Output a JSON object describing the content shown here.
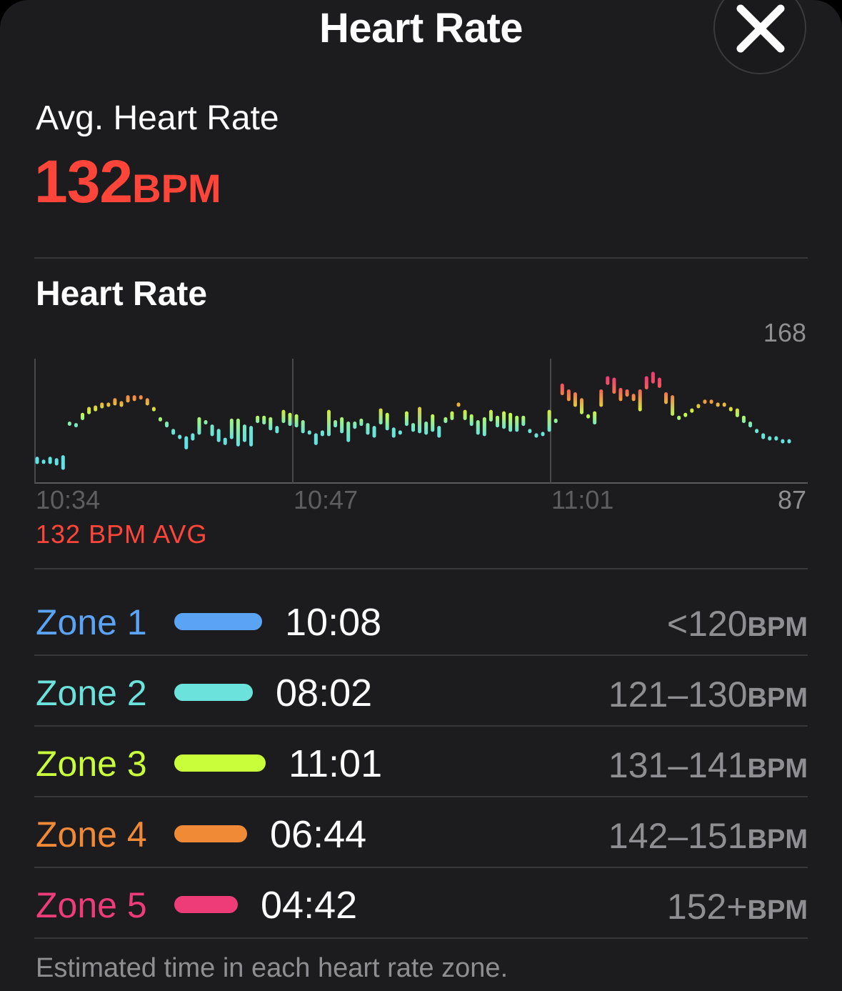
{
  "header": {
    "title": "Heart Rate"
  },
  "summary": {
    "label": "Avg. Heart Rate",
    "value": "132",
    "unit": "BPM"
  },
  "chart_section": {
    "title": "Heart Rate",
    "avg_caption": "132 BPM AVG"
  },
  "chart_data": {
    "type": "bar",
    "title": "Heart Rate",
    "x_tick_labels": [
      "10:34",
      "10:47",
      "11:01"
    ],
    "y_max_label": "168",
    "y_min_label": "87",
    "ylim": [
      87,
      168
    ],
    "unit": "BPM",
    "series": [
      {
        "name": "Heart rate range per interval",
        "values": [
          [
            98,
            103
          ],
          [
            99,
            101
          ],
          [
            98,
            103
          ],
          [
            97,
            102
          ],
          [
            94,
            104
          ],
          [
            125,
            127
          ],
          [
            124,
            126
          ],
          [
            128,
            133
          ],
          [
            132,
            137
          ],
          [
            134,
            138
          ],
          [
            136,
            140
          ],
          [
            137,
            140
          ],
          [
            138,
            143
          ],
          [
            137,
            141
          ],
          [
            140,
            145
          ],
          [
            141,
            145
          ],
          [
            142,
            145
          ],
          [
            138,
            143
          ],
          [
            137,
            134
          ],
          [
            130,
            128
          ],
          [
            127,
            123
          ],
          [
            118,
            122
          ],
          [
            115,
            118
          ],
          [
            108,
            117
          ],
          [
            114,
            119
          ],
          [
            118,
            130
          ],
          [
            125,
            128
          ],
          [
            117,
            125
          ],
          [
            113,
            122
          ],
          [
            111,
            116
          ],
          [
            115,
            129
          ],
          [
            110,
            129
          ],
          [
            113,
            125
          ],
          [
            110,
            124
          ],
          [
            126,
            131
          ],
          [
            125,
            131
          ],
          [
            121,
            130
          ],
          [
            119,
            124
          ],
          [
            126,
            135
          ],
          [
            124,
            133
          ],
          [
            123,
            132
          ],
          [
            119,
            128
          ],
          [
            119,
            121
          ],
          [
            111,
            119
          ],
          [
            117,
            121
          ],
          [
            117,
            135
          ],
          [
            123,
            128
          ],
          [
            119,
            130
          ],
          [
            113,
            127
          ],
          [
            122,
            127
          ],
          [
            124,
            129
          ],
          [
            118,
            126
          ],
          [
            116,
            124
          ],
          [
            125,
            136
          ],
          [
            121,
            133
          ],
          [
            116,
            123
          ],
          [
            119,
            121
          ],
          [
            124,
            134
          ],
          [
            120,
            126
          ],
          [
            119,
            137
          ],
          [
            118,
            127
          ],
          [
            120,
            132
          ],
          [
            116,
            124
          ],
          [
            126,
            130
          ],
          [
            128,
            134
          ],
          [
            139,
            140
          ],
          [
            128,
            135
          ],
          [
            124,
            132
          ],
          [
            118,
            128
          ],
          [
            117,
            130
          ],
          [
            127,
            135
          ],
          [
            123,
            131
          ],
          [
            122,
            134
          ],
          [
            120,
            133
          ],
          [
            120,
            131
          ],
          [
            124,
            131
          ],
          [
            120,
            122
          ],
          [
            116,
            119
          ],
          [
            117,
            120
          ],
          [
            120,
            135
          ],
          [
            126,
            129
          ],
          [
            145,
            153
          ],
          [
            141,
            149
          ],
          [
            137,
            147
          ],
          [
            132,
            143
          ],
          [
            130,
            132
          ],
          [
            125,
            134
          ],
          [
            137,
            149
          ],
          [
            152,
            158
          ],
          [
            146,
            157
          ],
          [
            141,
            150
          ],
          [
            144,
            149
          ],
          [
            141,
            146
          ],
          [
            134,
            149
          ],
          [
            149,
            158
          ],
          [
            153,
            161
          ],
          [
            150,
            157
          ],
          [
            139,
            147
          ],
          [
            131,
            145
          ],
          [
            129,
            131
          ],
          [
            131,
            133
          ],
          [
            133,
            136
          ],
          [
            137,
            139
          ],
          [
            141,
            142
          ],
          [
            141,
            142
          ],
          [
            138,
            140
          ],
          [
            138,
            140
          ],
          [
            134,
            137
          ],
          [
            130,
            136
          ],
          [
            126,
            131
          ],
          [
            123,
            127
          ],
          [
            120,
            122
          ],
          [
            115,
            119
          ],
          [
            114,
            117
          ],
          [
            114,
            117
          ],
          [
            114,
            115
          ],
          [
            114,
            115
          ]
        ]
      }
    ]
  },
  "zones": [
    {
      "name": "Zone 1",
      "time": "10:08",
      "range": "<120",
      "unit": "BPM",
      "color": "#5ba3f5",
      "time_seconds": 608
    },
    {
      "name": "Zone 2",
      "time": "08:02",
      "range": "121–130",
      "unit": "BPM",
      "color": "#6be3dc",
      "time_seconds": 482
    },
    {
      "name": "Zone 3",
      "time": "11:01",
      "range": "131–141",
      "unit": "BPM",
      "color": "#c9ff3a",
      "time_seconds": 661
    },
    {
      "name": "Zone 4",
      "time": "06:44",
      "range": "142–151",
      "unit": "BPM",
      "color": "#f08a37",
      "time_seconds": 404
    },
    {
      "name": "Zone 5",
      "time": "04:42",
      "range": "152+",
      "unit": "BPM",
      "color": "#ee3c78",
      "time_seconds": 282
    }
  ],
  "footnote": "Estimated time in each heart rate zone."
}
